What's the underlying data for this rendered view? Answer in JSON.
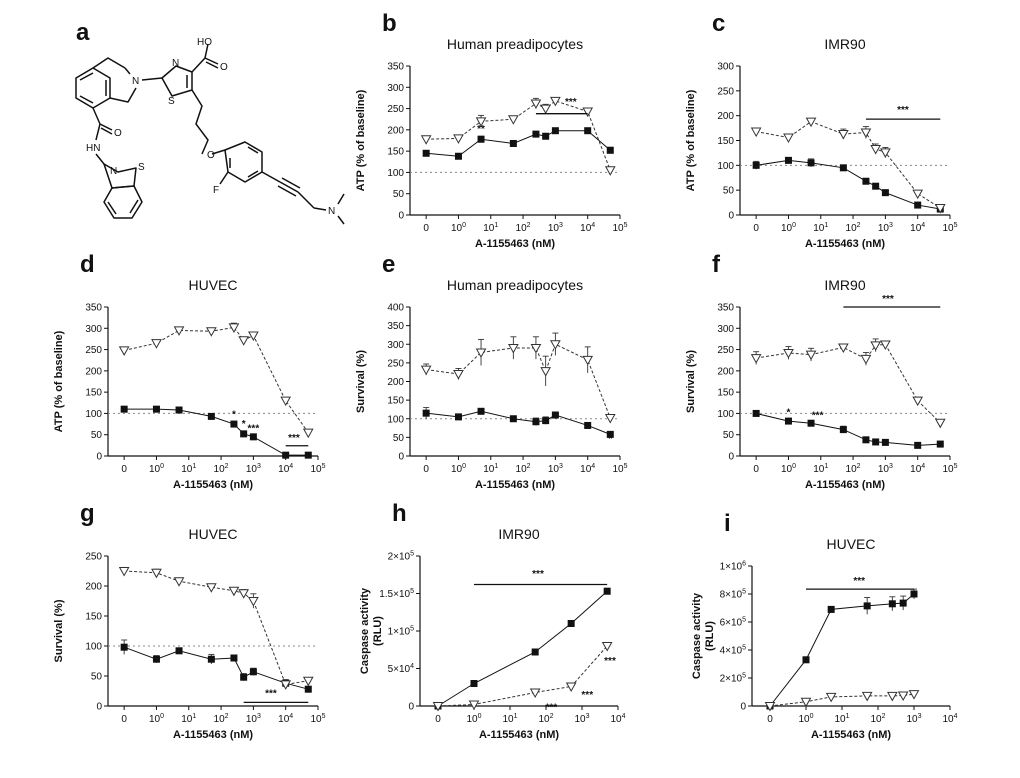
{
  "figure": {
    "molecule_panel_label": "a",
    "molecule": {
      "name": "A-1155463",
      "atom_labels": [
        "HO",
        "O",
        "N",
        "S",
        "N",
        "O",
        "HN",
        "N",
        "S",
        "O",
        "F",
        "N"
      ]
    }
  },
  "chart_data": [
    {
      "id": "b",
      "label": "b",
      "title": "Human preadipocytes",
      "type": "line",
      "xlabel": "A-1155463 (nM)",
      "ylabel": "ATP (% of baseline)",
      "yticks": [
        0,
        50,
        100,
        150,
        200,
        250,
        300,
        350
      ],
      "ylim": [
        0,
        350
      ],
      "xtick_labels": [
        "0",
        "10^0",
        "10^1",
        "10^2",
        "10^3",
        "10^4",
        "10^5"
      ],
      "baseline": 100,
      "series": [
        {
          "name": "solid",
          "marker": "square",
          "x": [
            "0",
            1,
            5,
            50,
            250,
            500,
            1000,
            10000,
            50000
          ],
          "values": [
            145,
            138,
            178,
            168,
            190,
            185,
            198,
            198,
            152
          ],
          "err": [
            6,
            4,
            7,
            4,
            5,
            4,
            5,
            5,
            7
          ]
        },
        {
          "name": "dashed",
          "marker": "triangle-down",
          "x": [
            "0",
            1,
            5,
            50,
            250,
            500,
            1000,
            10000,
            50000
          ],
          "values": [
            178,
            180,
            220,
            225,
            262,
            250,
            268,
            243,
            105
          ],
          "err": [
            6,
            4,
            14,
            6,
            12,
            10,
            8,
            8,
            4
          ]
        }
      ],
      "annotations": [
        {
          "text": "**",
          "x": 5,
          "y": 195
        },
        {
          "text": "***",
          "x": 3000,
          "y": 258
        }
      ],
      "sigbar": {
        "x1": 250,
        "x2": 10000,
        "y": 238
      }
    },
    {
      "id": "c",
      "label": "c",
      "title": "IMR90",
      "type": "line",
      "xlabel": "A-1155463 (nM)",
      "ylabel": "ATP (% of baseline)",
      "yticks": [
        0,
        50,
        100,
        150,
        200,
        250,
        300
      ],
      "ylim": [
        0,
        300
      ],
      "xtick_labels": [
        "0",
        "10^0",
        "10^1",
        "10^2",
        "10^3",
        "10^4",
        "10^5"
      ],
      "baseline": 100,
      "series": [
        {
          "name": "solid",
          "marker": "square",
          "x": [
            "0",
            1,
            5,
            50,
            250,
            500,
            1000,
            10000,
            50000
          ],
          "values": [
            100,
            110,
            105,
            95,
            68,
            58,
            45,
            20,
            12
          ],
          "err": [
            8,
            4,
            8,
            5,
            5,
            4,
            4,
            3,
            2
          ]
        },
        {
          "name": "dashed",
          "marker": "triangle-down",
          "x": [
            "0",
            1,
            5,
            50,
            250,
            500,
            1000,
            10000,
            50000
          ],
          "values": [
            168,
            156,
            188,
            163,
            166,
            133,
            126,
            43,
            14
          ],
          "err": [
            4,
            4,
            4,
            10,
            12,
            10,
            10,
            4,
            3
          ]
        }
      ],
      "annotations": [
        {
          "text": "***",
          "x": 3500,
          "y": 205
        }
      ],
      "sigbar": {
        "x1": 250,
        "x2": 50000,
        "y": 193
      }
    },
    {
      "id": "d",
      "label": "d",
      "title": "HUVEC",
      "type": "line",
      "xlabel": "A-1155463 (nM)",
      "ylabel": "ATP (% of baseline)",
      "yticks": [
        0,
        50,
        100,
        150,
        200,
        250,
        300,
        350
      ],
      "ylim": [
        0,
        350
      ],
      "xtick_labels": [
        "0",
        "10^0",
        "10^1",
        "10^2",
        "10^3",
        "10^4",
        "10^5"
      ],
      "baseline": 100,
      "series": [
        {
          "name": "solid",
          "marker": "square",
          "x": [
            "0",
            1,
            5,
            50,
            250,
            500,
            1000,
            10000,
            50000
          ],
          "values": [
            110,
            110,
            108,
            93,
            75,
            52,
            45,
            2,
            2
          ],
          "err": [
            4,
            3,
            3,
            3,
            4,
            3,
            3,
            1,
            1
          ]
        },
        {
          "name": "dashed",
          "marker": "triangle-down",
          "x": [
            "0",
            1,
            5,
            50,
            250,
            500,
            1000,
            10000,
            50000
          ],
          "values": [
            248,
            265,
            295,
            293,
            302,
            272,
            283,
            130,
            55
          ],
          "err": [
            3,
            3,
            5,
            5,
            10,
            6,
            8,
            3,
            3
          ]
        }
      ],
      "annotations": [
        {
          "text": "*",
          "x": 250,
          "y": 90
        },
        {
          "text": "*",
          "x": 500,
          "y": 68
        },
        {
          "text": "***",
          "x": 1000,
          "y": 58
        },
        {
          "text": "***",
          "x": 18000,
          "y": 35
        }
      ],
      "sigbar": {
        "x1": 10000,
        "x2": 50000,
        "y": 24
      }
    },
    {
      "id": "e",
      "label": "e",
      "title": "Human preadipocytes",
      "type": "line",
      "xlabel": "A-1155463 (nM)",
      "ylabel": "Survival (%)",
      "yticks": [
        0,
        50,
        100,
        150,
        200,
        250,
        300,
        350,
        400
      ],
      "ylim": [
        0,
        400
      ],
      "xtick_labels": [
        "0",
        "10^0",
        "10^1",
        "10^2",
        "10^3",
        "10^4",
        "10^5"
      ],
      "baseline": 100,
      "series": [
        {
          "name": "solid",
          "marker": "square",
          "x": [
            "0",
            1,
            5,
            50,
            250,
            500,
            1000,
            10000,
            50000
          ],
          "values": [
            115,
            105,
            120,
            100,
            92,
            95,
            110,
            82,
            58
          ],
          "err": [
            15,
            6,
            6,
            6,
            10,
            10,
            8,
            8,
            8
          ]
        },
        {
          "name": "dashed",
          "marker": "triangle-down",
          "x": [
            "0",
            1,
            5,
            50,
            250,
            500,
            1000,
            10000,
            50000
          ],
          "values": [
            232,
            220,
            278,
            290,
            290,
            228,
            300,
            258,
            102
          ],
          "err": [
            15,
            15,
            35,
            30,
            30,
            40,
            30,
            35,
            8
          ]
        }
      ],
      "annotations": [
        {
          "text": "*",
          "x": 50000,
          "y": 38
        }
      ],
      "sigbar": null
    },
    {
      "id": "f",
      "label": "f",
      "title": "IMR90",
      "type": "line",
      "xlabel": "A-1155463 (nM)",
      "ylabel": "Survival (%)",
      "yticks": [
        0,
        50,
        100,
        150,
        200,
        250,
        300,
        350
      ],
      "ylim": [
        0,
        350
      ],
      "xtick_labels": [
        "0",
        "10^0",
        "10^1",
        "10^2",
        "10^3",
        "10^4",
        "10^5"
      ],
      "baseline": 100,
      "series": [
        {
          "name": "solid",
          "marker": "square",
          "x": [
            "0",
            1,
            5,
            50,
            250,
            500,
            1000,
            10000,
            50000
          ],
          "values": [
            100,
            82,
            77,
            62,
            38,
            33,
            32,
            25,
            28
          ],
          "err": [
            3,
            3,
            3,
            8,
            3,
            3,
            3,
            3,
            3
          ]
        },
        {
          "name": "dashed",
          "marker": "triangle-down",
          "x": [
            "0",
            1,
            5,
            50,
            250,
            500,
            1000,
            10000,
            50000
          ],
          "values": [
            230,
            242,
            238,
            255,
            228,
            260,
            262,
            130,
            78
          ],
          "err": [
            15,
            15,
            15,
            8,
            15,
            15,
            8,
            8,
            4
          ]
        }
      ],
      "annotations": [
        {
          "text": "*",
          "x": 1,
          "y": 95
        },
        {
          "text": "***",
          "x": 8,
          "y": 88
        },
        {
          "text": "***",
          "x": 1200,
          "y": 362
        }
      ],
      "sigbar": {
        "x1": 50,
        "x2": 50000,
        "y": 350
      }
    },
    {
      "id": "g",
      "label": "g",
      "title": "HUVEC",
      "type": "line",
      "xlabel": "A-1155463 (nM)",
      "ylabel": "Survival (%)",
      "yticks": [
        0,
        50,
        100,
        150,
        200,
        250
      ],
      "ylim": [
        0,
        250
      ],
      "xtick_labels": [
        "0",
        "10^0",
        "10^1",
        "10^2",
        "10^3",
        "10^4",
        "10^5"
      ],
      "baseline": 100,
      "series": [
        {
          "name": "solid",
          "marker": "square",
          "x": [
            "0",
            1,
            5,
            50,
            250,
            500,
            1000,
            10000,
            50000
          ],
          "values": [
            98,
            78,
            92,
            78,
            80,
            48,
            57,
            38,
            28
          ],
          "err": [
            12,
            6,
            4,
            8,
            4,
            6,
            6,
            6,
            4
          ]
        },
        {
          "name": "dashed",
          "marker": "triangle-down",
          "x": [
            "0",
            1,
            5,
            50,
            250,
            500,
            1000,
            10000,
            50000
          ],
          "values": [
            225,
            222,
            208,
            198,
            192,
            188,
            175,
            36,
            42
          ],
          "err": [
            6,
            6,
            3,
            3,
            3,
            6,
            12,
            4,
            3
          ]
        }
      ],
      "annotations": [
        {
          "text": "***",
          "x": 3500,
          "y": 16
        }
      ],
      "sigbar": {
        "x1": 500,
        "x2": 50000,
        "y": 6
      }
    },
    {
      "id": "h",
      "label": "h",
      "title": "IMR90",
      "type": "line",
      "xlabel": "A-1155463 (nM)",
      "ylabel": "Caspase activity (RLU)",
      "yticks": [
        0,
        50000,
        100000,
        150000,
        200000
      ],
      "ytick_labels": [
        "0",
        "5×10^4",
        "1×10^5",
        "1.5×10^5",
        "2×10^5"
      ],
      "ylim": [
        0,
        200000
      ],
      "xtick_labels": [
        "0",
        "10^0",
        "10^1",
        "10^2",
        "10^3",
        "10^4"
      ],
      "baseline": null,
      "series": [
        {
          "name": "solid",
          "marker": "square",
          "x": [
            "0",
            1,
            50,
            500,
            5000
          ],
          "values": [
            0,
            30000,
            72000,
            110000,
            153000
          ],
          "err": [
            500,
            1500,
            3000,
            2500,
            4000
          ]
        },
        {
          "name": "dashed",
          "marker": "triangle-down",
          "x": [
            "0",
            1,
            50,
            500,
            5000
          ],
          "values": [
            0,
            2000,
            18000,
            26000,
            80000
          ],
          "err": [
            500,
            500,
            2000,
            2000,
            3000
          ]
        }
      ],
      "annotations": [
        {
          "text": "***",
          "x": 140,
          "y": -6000
        },
        {
          "text": "***",
          "x": 1400,
          "y": 11000
        },
        {
          "text": "***",
          "x": 6000,
          "y": 56000
        },
        {
          "text": "***",
          "x": 60,
          "y": 172000
        }
      ],
      "sigbar": {
        "x1": 1,
        "x2": 5000,
        "y": 162000
      }
    },
    {
      "id": "i",
      "label": "i",
      "title": "HUVEC",
      "type": "line",
      "xlabel": "A-1155463 (nM)",
      "ylabel": "Caspase activity (RLU)",
      "yticks": [
        0,
        200000,
        400000,
        600000,
        800000,
        1000000
      ],
      "ytick_labels": [
        "0",
        "2×10^5",
        "4×10^5",
        "6×10^5",
        "8×10^5",
        "1×10^6"
      ],
      "ylim": [
        0,
        1000000
      ],
      "xtick_labels": [
        "0",
        "10^0",
        "10^1",
        "10^2",
        "10^3",
        "10^4"
      ],
      "baseline": null,
      "series": [
        {
          "name": "solid",
          "marker": "square",
          "x": [
            "0",
            1,
            5,
            50,
            250,
            500,
            1000
          ],
          "values": [
            0,
            330000,
            690000,
            715000,
            730000,
            735000,
            800000
          ],
          "err": [
            5000,
            10000,
            15000,
            60000,
            50000,
            50000,
            35000
          ]
        },
        {
          "name": "dashed",
          "marker": "triangle-down",
          "x": [
            "0",
            1,
            5,
            50,
            250,
            500,
            1000
          ],
          "values": [
            0,
            30000,
            65000,
            72000,
            72000,
            75000,
            85000
          ],
          "err": [
            3000,
            3000,
            5000,
            5000,
            5000,
            5000,
            5000
          ]
        }
      ],
      "annotations": [
        {
          "text": "***",
          "x": 30,
          "y": 870000
        }
      ],
      "sigbar": {
        "x1": 1,
        "x2": 1000,
        "y": 835000
      }
    }
  ]
}
